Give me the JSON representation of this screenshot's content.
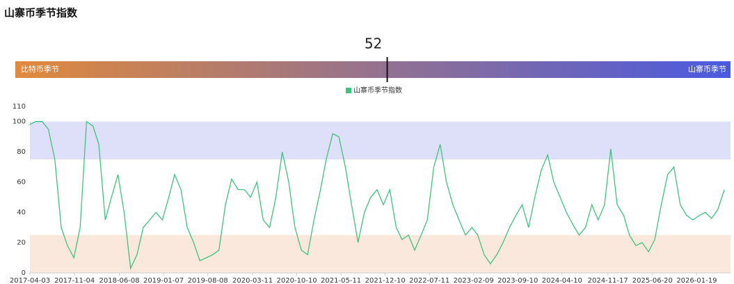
{
  "title": "山寨币季节指数",
  "gauge": {
    "value": 52,
    "min": 0,
    "max": 100,
    "left_label": "比特币季节",
    "right_label": "山寨币季节",
    "left_color": "#e08a3c",
    "right_color": "#4a5ae0"
  },
  "chart_data": {
    "type": "line",
    "x": [
      "2017-04-01",
      "2017-05-01",
      "2017-06-01",
      "2017-07-01",
      "2017-08-01",
      "2017-09-01",
      "2017-10-01",
      "2017-11-01",
      "2017-12-01",
      "2018-01-01",
      "2018-02-01",
      "2018-03-01",
      "2018-04-01",
      "2018-05-01",
      "2018-06-01",
      "2018-07-01",
      "2018-08-01",
      "2018-09-01",
      "2018-10-01",
      "2018-11-01",
      "2018-12-01",
      "2019-01-01",
      "2019-02-01",
      "2019-03-01",
      "2019-04-01",
      "2019-05-01",
      "2019-06-01",
      "2019-07-01",
      "2019-08-01",
      "2019-09-01",
      "2019-10-01",
      "2019-11-01",
      "2019-12-01",
      "2020-01-01",
      "2020-02-01",
      "2020-03-01",
      "2020-04-01",
      "2020-05-01",
      "2020-06-01",
      "2020-07-01",
      "2020-08-01",
      "2020-09-01",
      "2020-10-01",
      "2020-11-01",
      "2020-12-01",
      "2021-01-01",
      "2021-02-01",
      "2021-03-01",
      "2021-04-01",
      "2021-05-01",
      "2021-06-01",
      "2021-07-01",
      "2021-08-01",
      "2021-09-01",
      "2021-10-01",
      "2021-11-01",
      "2021-12-01",
      "2022-01-01",
      "2022-02-01",
      "2022-03-01",
      "2022-04-01",
      "2022-05-01",
      "2022-06-01",
      "2022-07-01",
      "2022-08-01",
      "2022-09-01",
      "2022-10-01",
      "2022-11-01",
      "2022-12-01",
      "2023-01-01",
      "2023-02-01",
      "2023-03-01",
      "2023-04-01",
      "2023-05-01",
      "2023-06-01",
      "2023-07-01",
      "2023-08-01",
      "2023-09-01",
      "2023-10-01",
      "2023-11-01",
      "2023-12-01",
      "2024-01-01",
      "2024-02-01",
      "2024-03-01",
      "2024-04-01",
      "2024-05-01",
      "2024-06-01",
      "2024-07-01",
      "2024-08-01",
      "2024-09-01",
      "2024-10-01",
      "2024-11-01",
      "2024-12-01",
      "2025-01-01",
      "2025-02-01",
      "2025-03-01",
      "2025-04-01",
      "2025-05-01",
      "2025-06-01",
      "2025-07-01",
      "2025-08-01",
      "2025-09-01",
      "2025-10-01",
      "2025-11-01",
      "2025-12-01",
      "2026-01-01",
      "2026-02-01",
      "2026-03-01",
      "2026-04-01",
      "2026-05-01",
      "2026-06-01"
    ],
    "series": [
      {
        "name": "山寨币季节指数",
        "color": "#3cc47c",
        "values": [
          98,
          100,
          100,
          95,
          75,
          30,
          18,
          10,
          30,
          100,
          97,
          85,
          35,
          50,
          65,
          40,
          3,
          12,
          30,
          35,
          40,
          35,
          50,
          65,
          55,
          30,
          20,
          8,
          10,
          12,
          15,
          45,
          62,
          55,
          55,
          50,
          60,
          35,
          30,
          50,
          80,
          60,
          30,
          15,
          12,
          35,
          55,
          75,
          92,
          90,
          70,
          45,
          20,
          40,
          50,
          55,
          45,
          55,
          30,
          22,
          25,
          15,
          25,
          35,
          70,
          85,
          60,
          45,
          35,
          25,
          30,
          25,
          12,
          6,
          12,
          20,
          30,
          38,
          45,
          30,
          50,
          68,
          78,
          60,
          50,
          40,
          32,
          25,
          30,
          45,
          35,
          45,
          82,
          45,
          38,
          25,
          18,
          20,
          14,
          22,
          45,
          65,
          70,
          45,
          38,
          35,
          38,
          40,
          36,
          42,
          55
        ]
      }
    ],
    "xlim": [
      "2017-04-03",
      "2026-07-01"
    ],
    "xticks": [
      "2017-04-03",
      "2017-11-04",
      "2018-06-08",
      "2019-01-07",
      "2019-08-08",
      "2020-03-11",
      "2020-10-10",
      "2021-05-11",
      "2021-12-10",
      "2022-07-11",
      "2023-02-09",
      "2023-09-10",
      "2024-04-10",
      "2024-11-17",
      "2025-06-20",
      "2026-01-19"
    ],
    "ylim": [
      0,
      110
    ],
    "yticks": [
      0,
      20,
      40,
      60,
      80,
      100,
      110
    ],
    "bands": [
      {
        "from": 75,
        "to": 100,
        "color": "#dde0f8"
      },
      {
        "from": 0,
        "to": 25,
        "color": "#fbe8dc"
      }
    ],
    "legend": "top"
  }
}
